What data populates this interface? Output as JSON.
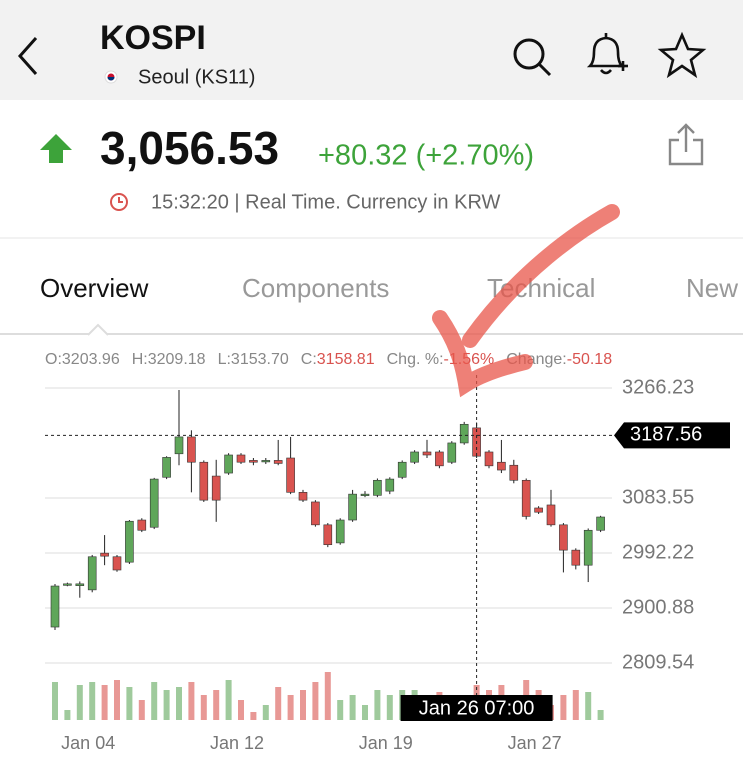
{
  "header": {
    "title": "KOSPI",
    "exchange": "Seoul (KS11)"
  },
  "quote": {
    "price": "3,056.53",
    "change": "+80.32 (+2.70%)",
    "time_note": "15:32:20 | Real Time. Currency in KRW"
  },
  "tabs": [
    "Overview",
    "Components",
    "Technical",
    "New"
  ],
  "chart_data": {
    "type": "candlestick",
    "readout": [
      {
        "label": "O:",
        "value": "3203.96"
      },
      {
        "label": "H:",
        "value": "3209.18"
      },
      {
        "label": "L:",
        "value": "3153.70"
      },
      {
        "label": "C:",
        "value": "3158.81"
      },
      {
        "label": "Chg. %:",
        "value": "-1.56%"
      },
      {
        "label": "Change:",
        "value": "-50.18"
      }
    ],
    "categories": [
      null,
      null,
      null,
      "Jan 04",
      null,
      null,
      null,
      null,
      null,
      null,
      null,
      null,
      null,
      null,
      null,
      "Jan 12",
      null,
      null,
      null,
      null,
      null,
      null,
      null,
      null,
      null,
      null,
      null,
      "Jan 19",
      null,
      null,
      null,
      null,
      null,
      null,
      null,
      null,
      null,
      null,
      null,
      "Jan 27",
      null,
      null,
      null,
      null,
      null
    ],
    "open": [
      2869.3,
      2939,
      2938,
      2931,
      2992,
      2986,
      2977,
      3047,
      3035,
      3118,
      3157,
      3185,
      3143,
      3120,
      3125,
      3155,
      3146,
      3145,
      3146,
      3150,
      3093,
      3077,
      3039,
      3009,
      3047,
      3088,
      3088,
      3095,
      3118,
      3143,
      3160,
      3160,
      3143,
      3175,
      3200,
      3160,
      3143,
      3138,
      3113,
      3067,
      3072,
      3039,
      2997,
      2972,
      3030
    ],
    "high": [
      2940.7,
      2943,
      2945,
      2989,
      3022,
      2989,
      3047,
      3050,
      3117,
      3153,
      3263,
      3196,
      3146,
      3147,
      3158,
      3158,
      3150,
      3150,
      3180,
      3185,
      3097,
      3080,
      3042,
      3050,
      3097,
      3095,
      3116,
      3118,
      3146,
      3163,
      3180,
      3163,
      3178,
      3210,
      3209,
      3163,
      3180,
      3147,
      3116,
      3070,
      3097,
      3042,
      3000,
      3033,
      3054
    ],
    "low": [
      2864.3,
      2937,
      2918,
      2927,
      2972,
      2961,
      2974,
      3027,
      3032,
      3115,
      3138,
      3093,
      3077,
      3044,
      3122,
      3140,
      3138,
      3140,
      3138,
      3090,
      3077,
      3036,
      3002,
      3006,
      3044,
      3085,
      3085,
      3090,
      3115,
      3140,
      3150,
      3133,
      3140,
      3172,
      3150,
      3133,
      3125,
      3108,
      3048,
      3057,
      3036,
      2960,
      2965,
      2944,
      3027
    ],
    "close": [
      2937.4,
      2941,
      2941,
      2986,
      2987,
      2964,
      3045,
      3030,
      3115,
      3151,
      3185,
      3143,
      3080,
      3080,
      3155,
      3143,
      3143,
      3146,
      3141,
      3093,
      3080,
      3039,
      3006,
      3047,
      3090,
      3090,
      3113,
      3115,
      3143,
      3160,
      3155,
      3137,
      3175,
      3206,
      3153,
      3137,
      3130,
      3113,
      3053,
      3060,
      3039,
      2997,
      2972,
      3030,
      3052
    ],
    "volume": [
      38,
      10,
      35,
      38,
      35,
      40,
      33,
      20,
      38,
      30,
      33,
      38,
      25,
      30,
      40,
      20,
      8,
      15,
      33,
      25,
      30,
      38,
      48,
      20,
      25,
      15,
      30,
      25,
      30,
      30,
      25,
      28,
      10,
      25,
      35,
      30,
      35,
      25,
      40,
      30,
      15,
      25,
      30,
      28,
      10
    ],
    "up_color": "#5fa65a",
    "down_color": "#d9534f",
    "ylim": [
      2780,
      3290
    ],
    "yticks": [
      3266.23,
      3083.55,
      2992.22,
      2900.88,
      2809.54
    ],
    "grid": true,
    "crosshair": {
      "value": 3187.56,
      "label": "Jan 26 07:00"
    }
  }
}
